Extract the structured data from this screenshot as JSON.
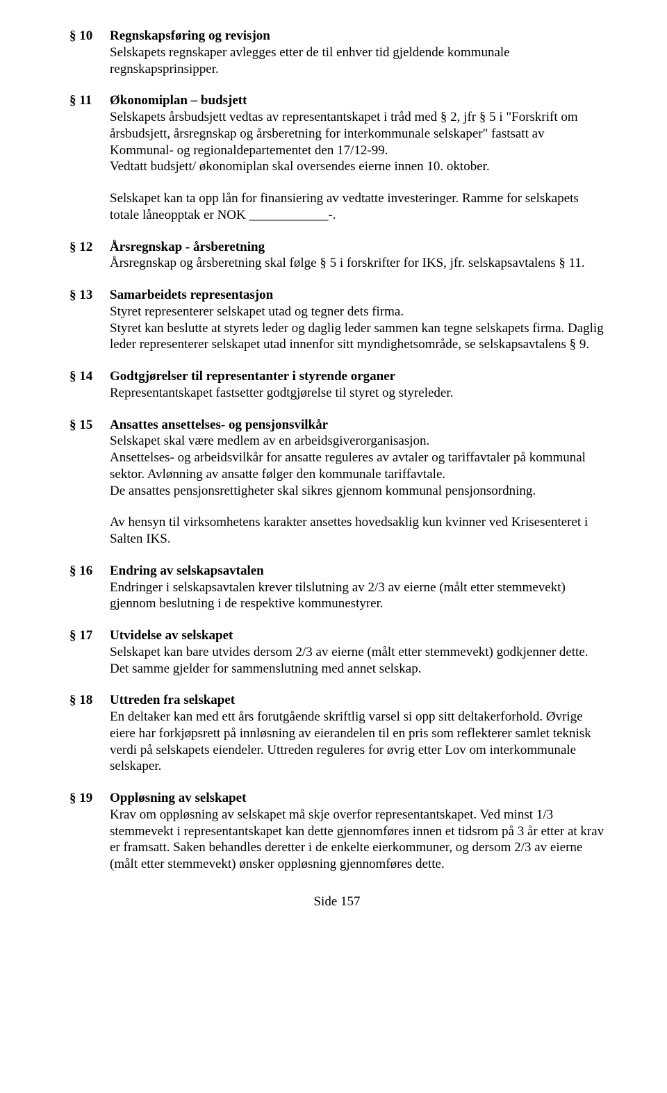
{
  "sections": [
    {
      "num": "§ 10",
      "title": "Regnskapsføring og revisjon",
      "paras": [
        "Selskapets regnskaper avlegges etter de til enhver tid gjeldende kommunale regnskapsprinsipper."
      ]
    },
    {
      "num": "§ 11",
      "title": "Økonomiplan – budsjett",
      "paras": [
        "Selskapets årsbudsjett vedtas av representantskapet i tråd med § 2, jfr § 5 i \"Forskrift om årsbudsjett, årsregnskap og årsberetning for interkommunale selskaper\" fastsatt av Kommunal- og regionaldepartementet den 17/12-99.\nVedtatt budsjett/ økonomiplan skal oversendes eierne innen 10. oktober.",
        "Selskapet kan ta opp lån for finansiering av vedtatte investeringer. Ramme for selskapets totale låneopptak er NOK ____________-."
      ]
    },
    {
      "num": "§ 12",
      "title": "Årsregnskap - årsberetning",
      "paras": [
        "Årsregnskap og årsberetning skal følge § 5 i forskrifter for IKS, jfr. selskapsavtalens § 11."
      ]
    },
    {
      "num": "§ 13",
      "title": "Samarbeidets representasjon",
      "paras": [
        "Styret representerer selskapet utad og tegner dets firma.\nStyret kan beslutte at styrets leder og daglig leder sammen kan tegne selskapets firma. Daglig leder representerer selskapet utad innenfor sitt myndighetsområde, se selskapsavtalens § 9."
      ]
    },
    {
      "num": "§ 14",
      "title": "Godtgjørelser til representanter i styrende organer",
      "paras": [
        "Representantskapet fastsetter godtgjørelse til styret og styreleder."
      ]
    },
    {
      "num": "§ 15",
      "title": "Ansattes ansettelses- og pensjonsvilkår",
      "paras": [
        "Selskapet skal være medlem av en arbeidsgiverorganisasjon.\nAnsettelses- og arbeidsvilkår for ansatte reguleres av avtaler og tariffavtaler på kommunal sektor. Avlønning av ansatte følger den kommunale tariffavtale.\nDe ansattes pensjonsrettigheter skal sikres gjennom kommunal pensjonsordning.",
        "Av hensyn til virksomhetens karakter ansettes hovedsaklig kun kvinner ved Krisesenteret i Salten IKS."
      ]
    },
    {
      "num": "§ 16",
      "title": "Endring av selskapsavtalen",
      "paras": [
        "Endringer i selskapsavtalen krever tilslutning av 2/3 av eierne (målt etter stemmevekt) gjennom beslutning i de respektive kommunestyrer."
      ]
    },
    {
      "num": "§ 17",
      "title": "Utvidelse av selskapet",
      "paras": [
        "Selskapet kan bare utvides dersom 2/3 av eierne (målt etter stemmevekt) godkjenner dette. Det samme gjelder for sammenslutning med annet selskap."
      ]
    },
    {
      "num": "§ 18",
      "title": "Uttreden fra selskapet",
      "paras": [
        "En deltaker kan med ett års forutgående skriftlig varsel si opp sitt deltakerforhold. Øvrige eiere har forkjøpsrett på innløsning av eierandelen til en pris som reflekterer samlet teknisk verdi på selskapets eiendeler. Uttreden reguleres for øvrig etter Lov om interkommunale selskaper."
      ]
    },
    {
      "num": "§ 19",
      "title": "Oppløsning av selskapet",
      "paras": [
        "Krav om oppløsning av selskapet må skje overfor representantskapet. Ved minst 1/3 stemmevekt i representantskapet kan dette gjennomføres innen et tidsrom på 3 år etter at krav er framsatt. Saken behandles deretter i de enkelte eierkommuner, og dersom 2/3 av eierne (målt etter stemmevekt) ønsker oppløsning gjennomføres dette."
      ]
    }
  ],
  "footer": "Side 157"
}
